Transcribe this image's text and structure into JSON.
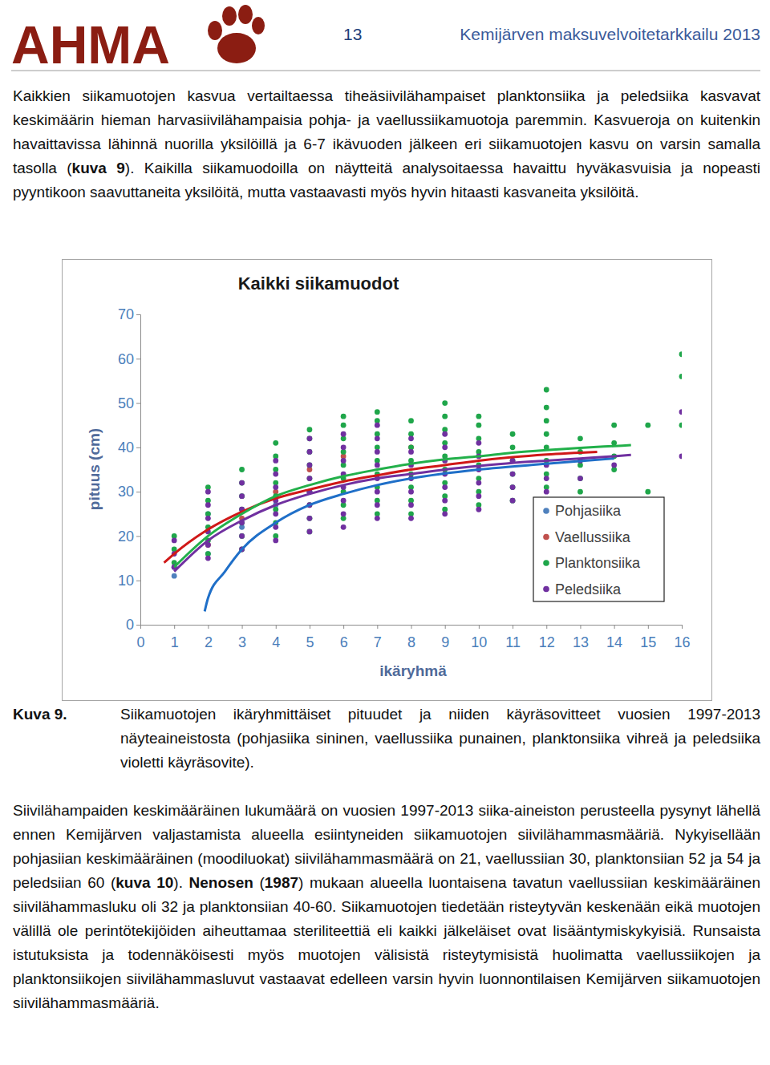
{
  "header": {
    "logo": "AHMA",
    "page": "13",
    "title": "Kemijärven maksuvelvoitetarkkailu 2013"
  },
  "paragraphs": [
    {
      "runs": [
        {
          "text": "Kaikkien siikamuotojen kasvua vertailtaessa tiheäsiivilähampaiset planktonsiika ja peledsiika kasvavat keskimäärin hieman harvasiivilähampaisia pohja- ja vaellussiikamuotoja paremmin. Kasvueroja on kuitenkin havaittavissa lähinnä nuorilla yksilöillä ja 6-7 ikävuoden jälkeen eri siikamuotojen kasvu on varsin samalla tasolla (",
          "bold": false
        },
        {
          "text": "kuva 9",
          "bold": true
        },
        {
          "text": "). Kaikilla siikamuodoilla on näytteitä analysoitaessa havaittu hyväkasvuisia ja nopeasti pyyntikoon saavuttaneita yksilöitä, mutta vastaavasti myös hyvin hitaasti kasvaneita yksilöitä.",
          "bold": false
        }
      ]
    },
    {
      "runs": [
        {
          "text": "Siivilähampaiden keskimääräinen lukumäärä on vuosien 1997-2013 siika-aineiston perusteella pysynyt lähellä ennen Kemijärven valjastamista alueella esiintyneiden siikamuotojen siivilähammasmääriä. Nykyisellään pohjasiian keskimääräinen (moodiluokat) siivilähammasmäärä on 21, vaellussiian 30, planktonsiian 52 ja 54 ja peledsiian 60 (",
          "bold": false
        },
        {
          "text": "kuva 10",
          "bold": true
        },
        {
          "text": "). ",
          "bold": false
        },
        {
          "text": "Nenosen",
          "bold": true
        },
        {
          "text": " (",
          "bold": false
        },
        {
          "text": "1987",
          "bold": true
        },
        {
          "text": ") mukaan alueella luontaisena tavatun vaellussiian keskimääräinen siivilähammasluku oli 32 ja planktonsiian 40-60. Siikamuotojen tiedetään risteytyvän keskenään eikä muotojen välillä ole perintötekijöiden aiheuttamaa steriliteettiä eli kaikki jälkeläiset ovat lisääntymiskykyisiä. Runsaista istutuksista ja todennäköisesti myös muotojen välisistä risteytymisistä huolimatta vaellussiikojen ja planktonsiikojen siivilähammasluvut vastaavat edelleen varsin hyvin luonnontilaisen Kemijärven siikamuotojen siivilähammasmääriä.",
          "bold": false
        }
      ]
    }
  ],
  "caption": {
    "label": "Kuva 9.",
    "text": "Siikamuotojen ikäryhmittäiset pituudet ja niiden käyräsovitteet vuosien 1997-2013 näyteaineistosta (pohjasiika sininen, vaellussiika punainen, planktonsiika vihreä ja peledsiika violetti käyräsovite)."
  },
  "chart_data": {
    "type": "scatter",
    "title": "Kaikki siikamuodot",
    "x_label": "ikäryhmä",
    "y_label": "pituus (cm)",
    "xlim": [
      0,
      16
    ],
    "ylim": [
      0,
      70
    ],
    "xticks": [
      0,
      1,
      2,
      3,
      4,
      5,
      6,
      7,
      8,
      9,
      10,
      11,
      12,
      13,
      14,
      15,
      16
    ],
    "yticks": [
      0,
      10,
      20,
      30,
      40,
      50,
      60,
      70
    ],
    "grid": false,
    "legend": "right",
    "series": [
      {
        "name": "Pohjasiika",
        "type": "scatter",
        "marker": "circle",
        "color": "#4f81bd",
        "x": [
          1,
          1,
          2,
          2,
          3,
          4,
          5
        ],
        "y": [
          11,
          13,
          16,
          25,
          22,
          27,
          30
        ]
      },
      {
        "name": "Vaellussiika",
        "type": "scatter",
        "marker": "circle",
        "color": "#c0504d",
        "x": [
          2,
          3,
          4,
          5,
          6,
          8
        ],
        "y": [
          18,
          24,
          30,
          35,
          38,
          40
        ]
      },
      {
        "name": "Planktonsiika",
        "type": "scatter",
        "marker": "circle",
        "color": "#1fa64a",
        "x": [
          1,
          1,
          1,
          2,
          2,
          2,
          2,
          2,
          2,
          3,
          3,
          3,
          3,
          3,
          3,
          3,
          4,
          4,
          4,
          4,
          4,
          4,
          4,
          4,
          5,
          5,
          5,
          5,
          5,
          5,
          5,
          5,
          5,
          6,
          6,
          6,
          6,
          6,
          6,
          6,
          6,
          6,
          7,
          7,
          7,
          7,
          7,
          7,
          7,
          7,
          7,
          8,
          8,
          8,
          8,
          8,
          8,
          8,
          8,
          9,
          9,
          9,
          9,
          9,
          9,
          9,
          9,
          9,
          10,
          10,
          10,
          10,
          10,
          10,
          10,
          10,
          11,
          11,
          11,
          11,
          11,
          11,
          12,
          12,
          12,
          12,
          12,
          12,
          12,
          12,
          12,
          13,
          13,
          13,
          13,
          13,
          14,
          14,
          14,
          14,
          15,
          15,
          16,
          16,
          16
        ],
        "y": [
          14,
          17,
          20,
          16,
          19,
          22,
          25,
          28,
          31,
          17,
          20,
          23,
          26,
          29,
          32,
          35,
          20,
          23,
          26,
          29,
          32,
          35,
          38,
          41,
          21,
          24,
          27,
          30,
          33,
          36,
          39,
          42,
          44,
          24,
          27,
          30,
          33,
          36,
          39,
          42,
          45,
          47,
          25,
          28,
          31,
          34,
          37,
          40,
          43,
          46,
          48,
          25,
          28,
          31,
          34,
          37,
          40,
          43,
          46,
          26,
          29,
          32,
          35,
          38,
          41,
          44,
          47,
          50,
          27,
          30,
          33,
          36,
          39,
          42,
          45,
          47,
          28,
          31,
          34,
          37,
          40,
          43,
          28,
          31,
          34,
          37,
          40,
          43,
          46,
          49,
          53,
          30,
          33,
          36,
          39,
          42,
          35,
          38,
          41,
          45,
          30,
          45,
          45,
          56,
          61
        ]
      },
      {
        "name": "Peledsiika",
        "type": "scatter",
        "marker": "circle",
        "color": "#7030a0",
        "x": [
          1,
          1,
          1,
          2,
          2,
          2,
          2,
          2,
          2,
          3,
          3,
          3,
          3,
          3,
          3,
          4,
          4,
          4,
          4,
          4,
          4,
          4,
          5,
          5,
          5,
          5,
          5,
          5,
          5,
          5,
          6,
          6,
          6,
          6,
          6,
          6,
          6,
          6,
          7,
          7,
          7,
          7,
          7,
          7,
          7,
          7,
          8,
          8,
          8,
          8,
          8,
          8,
          8,
          9,
          9,
          9,
          9,
          9,
          9,
          9,
          10,
          10,
          10,
          10,
          10,
          10,
          11,
          11,
          11,
          11,
          12,
          12,
          12,
          13,
          13,
          14,
          16,
          16
        ],
        "y": [
          13,
          16,
          19,
          15,
          18,
          21,
          24,
          27,
          30,
          17,
          20,
          23,
          26,
          29,
          32,
          19,
          22,
          25,
          28,
          31,
          34,
          37,
          21,
          24,
          27,
          30,
          33,
          36,
          39,
          42,
          22,
          25,
          28,
          31,
          34,
          37,
          40,
          43,
          24,
          27,
          30,
          33,
          36,
          39,
          42,
          45,
          24,
          27,
          30,
          33,
          36,
          39,
          42,
          25,
          28,
          31,
          34,
          37,
          40,
          43,
          26,
          29,
          32,
          35,
          38,
          41,
          28,
          31,
          34,
          37,
          30,
          33,
          36,
          33,
          37,
          36,
          38,
          48
        ]
      },
      {
        "type": "line",
        "line_style": "solid",
        "color": "#1f6fc8",
        "x": [
          1.9,
          2,
          2.5,
          3,
          4,
          5,
          6,
          7,
          8,
          10,
          12,
          14
        ],
        "y": [
          3,
          6,
          12,
          17,
          23,
          27,
          29.5,
          31.5,
          33,
          35,
          36.3,
          37.5
        ]
      },
      {
        "type": "line",
        "line_style": "solid",
        "color": "#d01818",
        "x": [
          0.7,
          1,
          2,
          3,
          4,
          5,
          6,
          7,
          8,
          9,
          10,
          11,
          12,
          13.5
        ],
        "y": [
          14,
          16,
          21.5,
          25.5,
          28.5,
          30.5,
          32.3,
          33.7,
          35,
          36,
          37,
          37.8,
          38.4,
          39
        ]
      },
      {
        "type": "line",
        "line_style": "solid",
        "color": "#22b04a",
        "x": [
          1,
          2,
          3,
          4,
          5,
          6,
          7,
          8,
          9,
          10,
          11,
          12,
          13,
          14,
          14.5
        ],
        "y": [
          13,
          20,
          25,
          29,
          31.5,
          33.5,
          35,
          36.3,
          37.3,
          38,
          38.8,
          39.4,
          39.9,
          40.3,
          40.5
        ]
      },
      {
        "type": "line",
        "line_style": "solid",
        "color": "#7030a0",
        "x": [
          1,
          2,
          3,
          4,
          5,
          6,
          7,
          8,
          9,
          10,
          11,
          12,
          13,
          14,
          14.5
        ],
        "y": [
          12,
          19,
          23.5,
          27,
          29.5,
          31.5,
          33,
          34,
          35,
          35.8,
          36.5,
          37,
          37.5,
          38,
          38.3
        ]
      }
    ]
  }
}
